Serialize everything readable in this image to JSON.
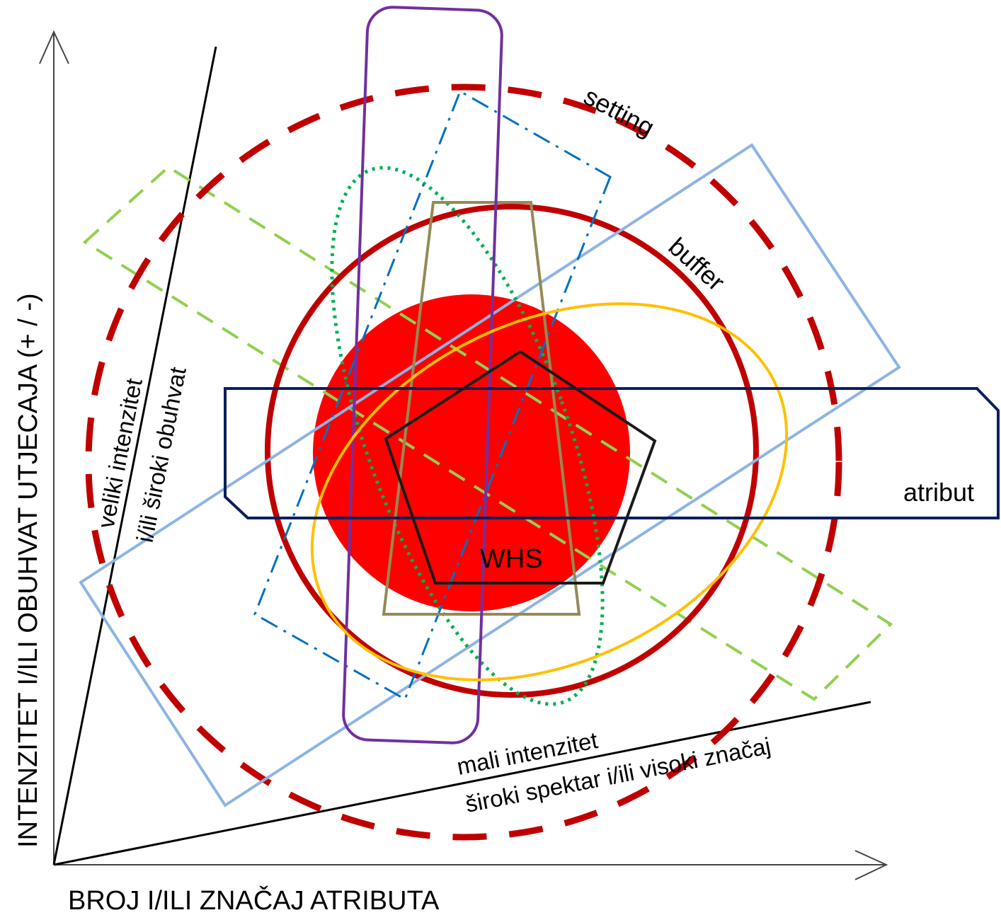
{
  "axes": {
    "y_label": "INTENZITET I/ILI OBUHVAT UTJECAJA (+ / -)",
    "x_label": "BROJ I/ILI ZNAČAJ ATRIBUTA"
  },
  "rays": {
    "steep_line1": "veliki intenzitet",
    "steep_line2": "i/ili široki obuhvat",
    "shallow_line1": "mali intenzitet",
    "shallow_line2": "široki spektar i/ili visoki značaj"
  },
  "zones": {
    "setting": "setting",
    "buffer": "buffer",
    "atribut": "atribut",
    "core": "WHS"
  },
  "colors": {
    "core_fill": "#ff0000",
    "setting_stroke": "#c00000",
    "buffer_stroke": "#c00000",
    "atribut_stroke": "#0b1f5c",
    "purple_rect": "#7030a0",
    "olive_trapezoid": "#948a54",
    "light_blue_rect": "#8eb4e3",
    "green_dashed_rect": "#92d050",
    "green_dotted_ellipse": "#00b050",
    "blue_dashdot_rect": "#0070c0",
    "orange_ellipse": "#ffc000",
    "pentagon": "#1a1a1a"
  }
}
